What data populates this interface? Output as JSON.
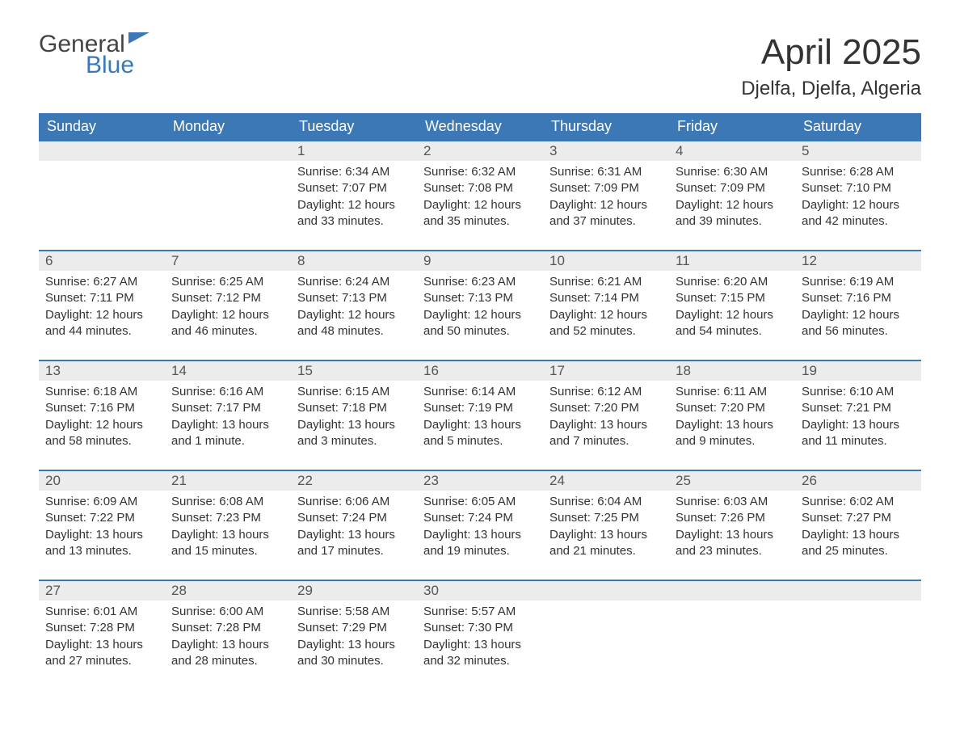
{
  "logo": {
    "word1": "General",
    "word2": "Blue"
  },
  "title": "April 2025",
  "subtitle": "Djelfa, Djelfa, Algeria",
  "colors": {
    "header_bg": "#3b78b5",
    "header_text": "#ffffff",
    "daynum_bg": "#ececec",
    "row_border": "#3b78b5",
    "text": "#333333"
  },
  "day_headers": [
    "Sunday",
    "Monday",
    "Tuesday",
    "Wednesday",
    "Thursday",
    "Friday",
    "Saturday"
  ],
  "weeks": [
    [
      null,
      null,
      {
        "n": "1",
        "sunrise": "6:34 AM",
        "sunset": "7:07 PM",
        "daylight": "12 hours and 33 minutes."
      },
      {
        "n": "2",
        "sunrise": "6:32 AM",
        "sunset": "7:08 PM",
        "daylight": "12 hours and 35 minutes."
      },
      {
        "n": "3",
        "sunrise": "6:31 AM",
        "sunset": "7:09 PM",
        "daylight": "12 hours and 37 minutes."
      },
      {
        "n": "4",
        "sunrise": "6:30 AM",
        "sunset": "7:09 PM",
        "daylight": "12 hours and 39 minutes."
      },
      {
        "n": "5",
        "sunrise": "6:28 AM",
        "sunset": "7:10 PM",
        "daylight": "12 hours and 42 minutes."
      }
    ],
    [
      {
        "n": "6",
        "sunrise": "6:27 AM",
        "sunset": "7:11 PM",
        "daylight": "12 hours and 44 minutes."
      },
      {
        "n": "7",
        "sunrise": "6:25 AM",
        "sunset": "7:12 PM",
        "daylight": "12 hours and 46 minutes."
      },
      {
        "n": "8",
        "sunrise": "6:24 AM",
        "sunset": "7:13 PM",
        "daylight": "12 hours and 48 minutes."
      },
      {
        "n": "9",
        "sunrise": "6:23 AM",
        "sunset": "7:13 PM",
        "daylight": "12 hours and 50 minutes."
      },
      {
        "n": "10",
        "sunrise": "6:21 AM",
        "sunset": "7:14 PM",
        "daylight": "12 hours and 52 minutes."
      },
      {
        "n": "11",
        "sunrise": "6:20 AM",
        "sunset": "7:15 PM",
        "daylight": "12 hours and 54 minutes."
      },
      {
        "n": "12",
        "sunrise": "6:19 AM",
        "sunset": "7:16 PM",
        "daylight": "12 hours and 56 minutes."
      }
    ],
    [
      {
        "n": "13",
        "sunrise": "6:18 AM",
        "sunset": "7:16 PM",
        "daylight": "12 hours and 58 minutes."
      },
      {
        "n": "14",
        "sunrise": "6:16 AM",
        "sunset": "7:17 PM",
        "daylight": "13 hours and 1 minute."
      },
      {
        "n": "15",
        "sunrise": "6:15 AM",
        "sunset": "7:18 PM",
        "daylight": "13 hours and 3 minutes."
      },
      {
        "n": "16",
        "sunrise": "6:14 AM",
        "sunset": "7:19 PM",
        "daylight": "13 hours and 5 minutes."
      },
      {
        "n": "17",
        "sunrise": "6:12 AM",
        "sunset": "7:20 PM",
        "daylight": "13 hours and 7 minutes."
      },
      {
        "n": "18",
        "sunrise": "6:11 AM",
        "sunset": "7:20 PM",
        "daylight": "13 hours and 9 minutes."
      },
      {
        "n": "19",
        "sunrise": "6:10 AM",
        "sunset": "7:21 PM",
        "daylight": "13 hours and 11 minutes."
      }
    ],
    [
      {
        "n": "20",
        "sunrise": "6:09 AM",
        "sunset": "7:22 PM",
        "daylight": "13 hours and 13 minutes."
      },
      {
        "n": "21",
        "sunrise": "6:08 AM",
        "sunset": "7:23 PM",
        "daylight": "13 hours and 15 minutes."
      },
      {
        "n": "22",
        "sunrise": "6:06 AM",
        "sunset": "7:24 PM",
        "daylight": "13 hours and 17 minutes."
      },
      {
        "n": "23",
        "sunrise": "6:05 AM",
        "sunset": "7:24 PM",
        "daylight": "13 hours and 19 minutes."
      },
      {
        "n": "24",
        "sunrise": "6:04 AM",
        "sunset": "7:25 PM",
        "daylight": "13 hours and 21 minutes."
      },
      {
        "n": "25",
        "sunrise": "6:03 AM",
        "sunset": "7:26 PM",
        "daylight": "13 hours and 23 minutes."
      },
      {
        "n": "26",
        "sunrise": "6:02 AM",
        "sunset": "7:27 PM",
        "daylight": "13 hours and 25 minutes."
      }
    ],
    [
      {
        "n": "27",
        "sunrise": "6:01 AM",
        "sunset": "7:28 PM",
        "daylight": "13 hours and 27 minutes."
      },
      {
        "n": "28",
        "sunrise": "6:00 AM",
        "sunset": "7:28 PM",
        "daylight": "13 hours and 28 minutes."
      },
      {
        "n": "29",
        "sunrise": "5:58 AM",
        "sunset": "7:29 PM",
        "daylight": "13 hours and 30 minutes."
      },
      {
        "n": "30",
        "sunrise": "5:57 AM",
        "sunset": "7:30 PM",
        "daylight": "13 hours and 32 minutes."
      },
      null,
      null,
      null
    ]
  ],
  "labels": {
    "sunrise": "Sunrise: ",
    "sunset": "Sunset: ",
    "daylight": "Daylight: "
  }
}
